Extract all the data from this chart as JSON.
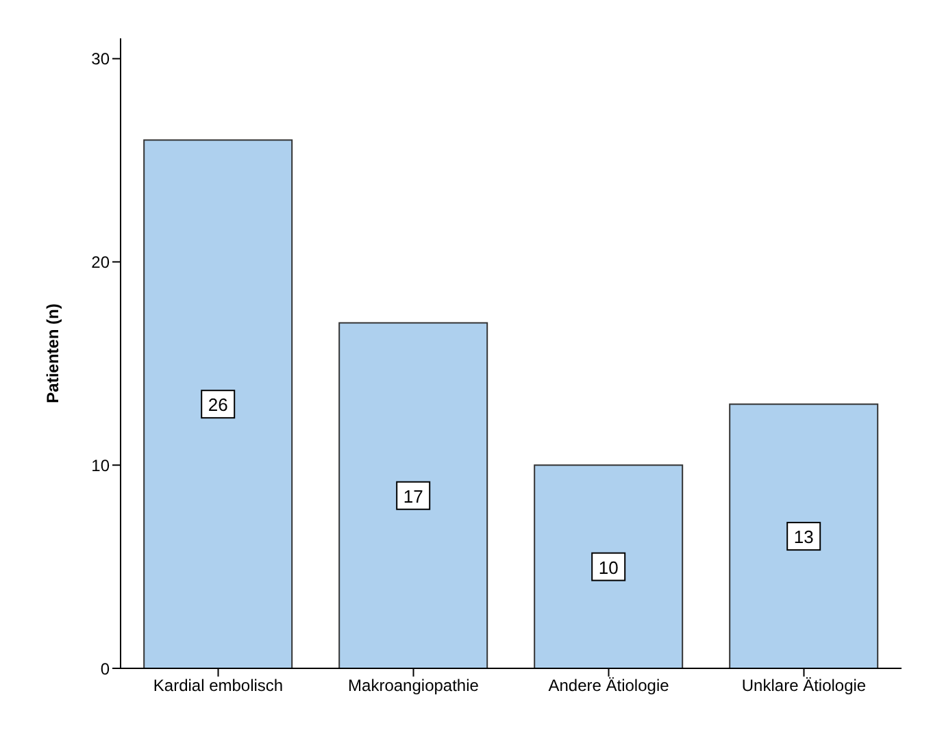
{
  "chart_data": {
    "type": "bar",
    "ylabel": "Patienten (n)",
    "categories": [
      "Kardial embolisch",
      "Makroangiopathie",
      "Andere Ätiologie",
      "Unklare Ätiologie"
    ],
    "values": [
      26,
      17,
      10,
      13
    ],
    "color": "#aed0ee",
    "ylim": [
      0,
      31
    ],
    "yticks": [
      0,
      10,
      20,
      30
    ],
    "grid": false,
    "data_labels": true
  }
}
